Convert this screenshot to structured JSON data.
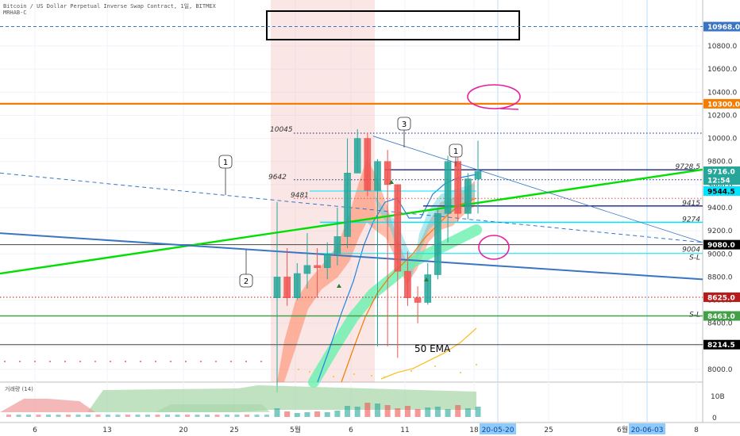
{
  "header": {
    "symbol_line": "Bitcoin / US Dollar Perpetual Inverse Swap Contract, 1일, BITMEX",
    "script_line": "MRHAB-C"
  },
  "volume_pane": {
    "label": "거래량 (14)",
    "scale_label": "10B",
    "zero_label": "0"
  },
  "colors": {
    "up": "#26a69a",
    "down": "#ef5350",
    "orange_line": "#f57c00",
    "green_line": "#00e000",
    "blue_line": "#3a75c4",
    "cyan_line": "#00e5ff",
    "navy_line": "#1a237e",
    "dark_red": "#b71c1c",
    "mid_green": "#43a047",
    "dark_gray": "#424242"
  },
  "chart_data": {
    "type": "candlestick",
    "symbol": "Bitcoin / US Dollar Perpetual Inverse Swap Contract",
    "interval": "1일",
    "exchange": "BITMEX",
    "ylim": [
      7800,
      11100
    ],
    "y_ticks": [
      8000,
      8200,
      8400,
      8600,
      8800,
      9000,
      9200,
      9400,
      9600,
      9800,
      10000,
      10200,
      10400,
      10600,
      10800
    ],
    "x_ticks": [
      "6",
      "13",
      "20",
      "25",
      "5월",
      "6",
      "11",
      "18",
      "25",
      "6월",
      "8"
    ],
    "candles": [
      {
        "date": "2020-04-30",
        "o": 8620,
        "h": 9450,
        "l": 7800,
        "c": 8800
      },
      {
        "date": "2020-05-01",
        "o": 8800,
        "h": 9050,
        "l": 8550,
        "c": 8620
      },
      {
        "date": "2020-05-02",
        "o": 8620,
        "h": 8920,
        "l": 8600,
        "c": 8830
      },
      {
        "date": "2020-05-03",
        "o": 8830,
        "h": 9180,
        "l": 8700,
        "c": 8900
      },
      {
        "date": "2020-05-04",
        "o": 8900,
        "h": 9050,
        "l": 8620,
        "c": 8880
      },
      {
        "date": "2020-05-05",
        "o": 8880,
        "h": 9100,
        "l": 8780,
        "c": 9000
      },
      {
        "date": "2020-05-06",
        "o": 9000,
        "h": 9400,
        "l": 8900,
        "c": 9150
      },
      {
        "date": "2020-05-07",
        "o": 9150,
        "h": 10000,
        "l": 9050,
        "c": 9700
      },
      {
        "date": "2020-05-08",
        "o": 9700,
        "h": 10080,
        "l": 9700,
        "c": 10000
      },
      {
        "date": "2020-05-09",
        "o": 10000,
        "h": 10050,
        "l": 9500,
        "c": 9550
      },
      {
        "date": "2020-05-10",
        "o": 9550,
        "h": 9820,
        "l": 8200,
        "c": 9800
      },
      {
        "date": "2020-05-11",
        "o": 9800,
        "h": 9900,
        "l": 8200,
        "c": 9600
      },
      {
        "date": "2020-05-12",
        "o": 9600,
        "h": 9600,
        "l": 8100,
        "c": 8850
      },
      {
        "date": "2020-05-13",
        "o": 8850,
        "h": 9020,
        "l": 8550,
        "c": 8620
      },
      {
        "date": "2020-05-14",
        "o": 8620,
        "h": 8720,
        "l": 8400,
        "c": 8580
      },
      {
        "date": "2020-05-15",
        "o": 8580,
        "h": 8920,
        "l": 8560,
        "c": 8820
      },
      {
        "date": "2020-05-16",
        "o": 8820,
        "h": 9400,
        "l": 8780,
        "c": 9350
      },
      {
        "date": "2020-05-17",
        "o": 9350,
        "h": 9850,
        "l": 9100,
        "c": 9800
      },
      {
        "date": "2020-05-18",
        "o": 9800,
        "h": 9850,
        "l": 9280,
        "c": 9350
      },
      {
        "date": "2020-05-19",
        "o": 9350,
        "h": 9700,
        "l": 9300,
        "c": 9650
      },
      {
        "date": "2020-05-20",
        "o": 9650,
        "h": 9980,
        "l": 9350,
        "c": 9716
      }
    ],
    "volume": [
      1.1,
      0.7,
      0.5,
      0.6,
      0.7,
      0.6,
      0.8,
      1.4,
      1.3,
      1.8,
      1.7,
      1.5,
      1.1,
      1.4,
      1.0,
      1.2,
      1.3,
      1.0,
      1.5,
      1.1,
      1.3
    ],
    "horizontal_lines": [
      {
        "price": 10968,
        "label": "10968.0",
        "style": "dashed",
        "color": "#3a75c4"
      },
      {
        "price": 10300,
        "label": "10300.0",
        "style": "solid",
        "color": "#f57c00"
      },
      {
        "price": 10045,
        "label": "10045",
        "style": "dotted",
        "color": "#1a237e"
      },
      {
        "price": 9728.5,
        "label": "9728.5",
        "style": "solid",
        "color": "#1a237e"
      },
      {
        "price": 9642,
        "label": "9642",
        "style": "dotted",
        "color": "#1a237e"
      },
      {
        "price": 9481,
        "label": "9481",
        "style": "dotted",
        "color": "#ef5350"
      },
      {
        "price": 9415,
        "label": "9415",
        "style": "solid",
        "color": "#1a237e"
      },
      {
        "price": 9274,
        "label": "9274",
        "style": "solid",
        "color": "#00e5ff"
      },
      {
        "price": 9080,
        "label": "9080.0",
        "style": "solid",
        "color": "#424242"
      },
      {
        "price": 9004,
        "label": "9004",
        "style": "solid",
        "color": "#00e5ff"
      },
      {
        "price": 8625,
        "label": "8625.0",
        "style": "dotted",
        "color": "#b71c1c"
      },
      {
        "price": 8463,
        "label": "8463.0",
        "style": "solid",
        "color": "#43a047"
      },
      {
        "price": 8214.5,
        "label": "8214.5",
        "style": "solid",
        "color": "#424242"
      }
    ],
    "price_badges": [
      {
        "price": 10968,
        "label": "10968.0",
        "bg": "#3a75c4",
        "fg": "#ffffff"
      },
      {
        "price": 10300,
        "label": "10300.0",
        "bg": "#f57c00",
        "fg": "#ffffff"
      },
      {
        "price": 9716,
        "label": "9716.0",
        "bg": "#26a69a",
        "fg": "#ffffff"
      },
      {
        "price": 9640,
        "label": "12:54",
        "bg": "#26a69a",
        "fg": "#ffffff"
      },
      {
        "price": 9544.5,
        "label": "9544.5",
        "bg": "#00e5ff",
        "fg": "#000000"
      },
      {
        "price": 9080,
        "label": "9080.0",
        "bg": "#000000",
        "fg": "#ffffff"
      },
      {
        "price": 8625,
        "label": "8625.0",
        "bg": "#b71c1c",
        "fg": "#ffffff"
      },
      {
        "price": 8463,
        "label": "8463.0",
        "bg": "#43a047",
        "fg": "#ffffff"
      },
      {
        "price": 8214.5,
        "label": "8214.5",
        "bg": "#000000",
        "fg": "#ffffff"
      }
    ],
    "line_labels": [
      "10045",
      "9728.5",
      "9642",
      "9481",
      "9415",
      "9274",
      "9004",
      "S-L",
      "S-L"
    ],
    "callouts": [
      "1",
      "2",
      "3",
      "1"
    ],
    "annotations": [
      "50 EMA"
    ],
    "date_badges": [
      "20-05-20",
      "20-06-03"
    ]
  }
}
